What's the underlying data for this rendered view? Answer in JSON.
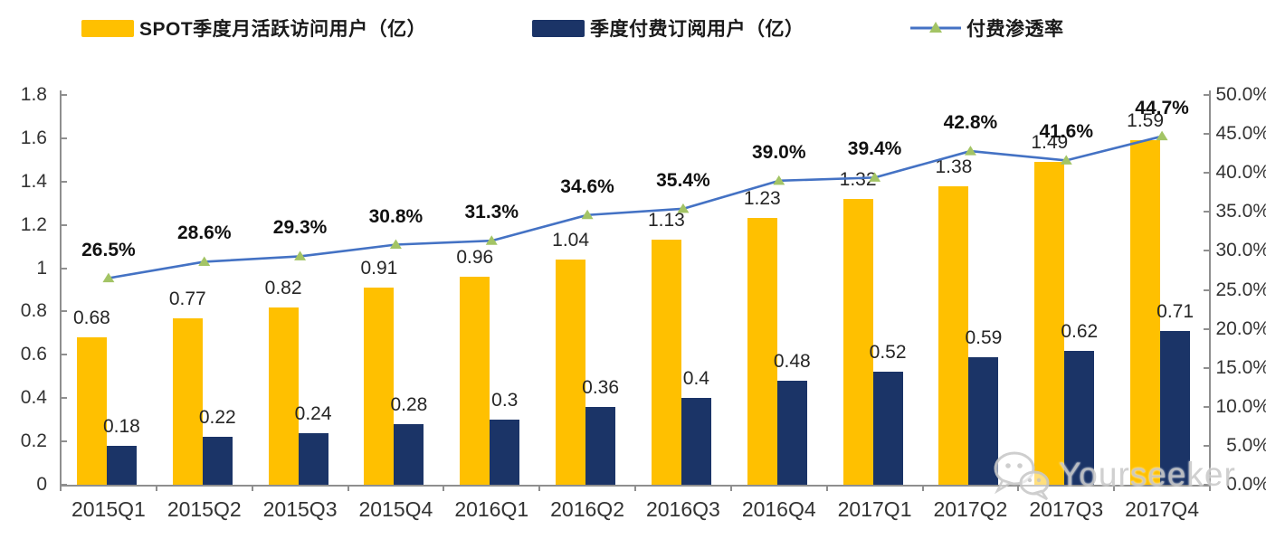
{
  "legend": {
    "items": [
      {
        "label": "SPOT季度月活跃访问用户（亿）",
        "color": "#FFC000",
        "type": "bar"
      },
      {
        "label": "季度付费订阅用户（亿）",
        "color": "#1B3467",
        "type": "bar"
      },
      {
        "label": "付费渗透率",
        "color": "#4472C4",
        "marker_color": "#A3C465",
        "type": "line"
      }
    ]
  },
  "chart_data": {
    "type": "bar",
    "subtype": "grouped-bars-with-line",
    "title": "",
    "categories": [
      "2015Q1",
      "2015Q2",
      "2015Q3",
      "2015Q4",
      "2016Q1",
      "2016Q2",
      "2016Q3",
      "2016Q4",
      "2017Q1",
      "2017Q2",
      "2017Q3",
      "2017Q4"
    ],
    "series": [
      {
        "name": "SPOT季度月活跃访问用户（亿）",
        "type": "bar",
        "axis": "left",
        "color": "#FFC000",
        "values": [
          0.68,
          0.77,
          0.82,
          0.91,
          0.96,
          1.04,
          1.13,
          1.23,
          1.32,
          1.38,
          1.49,
          1.59
        ],
        "labels": [
          "0.68",
          "0.77",
          "0.82",
          "0.91",
          "0.96",
          "1.04",
          "1.13",
          "1.23",
          "1.32",
          "1.38",
          "1.49",
          "1.59"
        ]
      },
      {
        "name": "季度付费订阅用户（亿）",
        "type": "bar",
        "axis": "left",
        "color": "#1B3467",
        "values": [
          0.18,
          0.22,
          0.24,
          0.28,
          0.3,
          0.36,
          0.4,
          0.48,
          0.52,
          0.59,
          0.62,
          0.71
        ],
        "labels": [
          "0.18",
          "0.22",
          "0.24",
          "0.28",
          "0.3",
          "0.36",
          "0.4",
          "0.48",
          "0.52",
          "0.59",
          "0.62",
          "0.71"
        ]
      },
      {
        "name": "付费渗透率",
        "type": "line",
        "axis": "right",
        "color": "#4472C4",
        "marker": "triangle",
        "marker_color": "#A3C465",
        "values": [
          26.5,
          28.6,
          29.3,
          30.8,
          31.3,
          34.6,
          35.4,
          39.0,
          39.4,
          42.8,
          41.6,
          44.7
        ],
        "labels": [
          "26.5%",
          "28.6%",
          "29.3%",
          "30.8%",
          "31.3%",
          "34.6%",
          "35.4%",
          "39.0%",
          "39.4%",
          "42.8%",
          "41.6%",
          "44.7%"
        ]
      }
    ],
    "left_axis": {
      "min": 0,
      "max": 1.8,
      "tick_values": [
        0,
        0.2,
        0.4,
        0.6,
        0.8,
        1,
        1.2,
        1.4,
        1.6,
        1.8
      ],
      "tick_labels": [
        "0",
        "0.2",
        "0.4",
        "0.6",
        "0.8",
        "1",
        "1.2",
        "1.4",
        "1.6",
        "1.8"
      ]
    },
    "right_axis": {
      "min": 0,
      "max": 50,
      "tick_values": [
        0,
        5,
        10,
        15,
        20,
        25,
        30,
        35,
        40,
        45,
        50
      ],
      "tick_labels": [
        "0.0%",
        "5.0%",
        "10.0%",
        "15.0%",
        "20.0%",
        "25.0%",
        "30.0%",
        "35.0%",
        "40.0%",
        "45.0%",
        "50.0%"
      ]
    },
    "grid": false,
    "legend_position": "top"
  },
  "watermark": {
    "text": "Yourseeker",
    "icon": "wechat-icon"
  }
}
